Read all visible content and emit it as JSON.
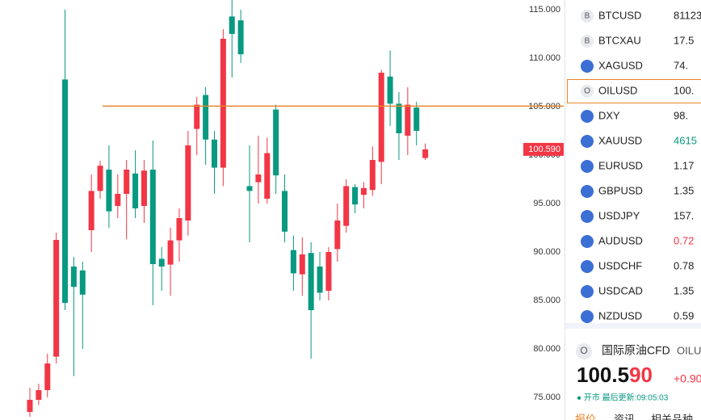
{
  "chart_data": {
    "type": "candlestick",
    "open": [
      73.5,
      74.75,
      75.75,
      79.2,
      107.8,
      88.5,
      88.1,
      92.25,
      96.3,
      98.5,
      94.75,
      96,
      98.1,
      94.75,
      98.5,
      89.3,
      88.7,
      91.2,
      93.25,
      102.7,
      106.2,
      101.6,
      98.7,
      114.3,
      113.9,
      96.8,
      97.2,
      95.5,
      104.7,
      96.3,
      90.2,
      87.7,
      89.9,
      88.5,
      86,
      90.3,
      92.7,
      96.7,
      95.9,
      96.4,
      99.3,
      108.1,
      105.3,
      102,
      104.9,
      99.7
    ],
    "high": [
      76,
      76.4,
      79.5,
      92,
      115,
      89.5,
      89,
      98,
      99.4,
      101,
      98,
      99.5,
      100.5,
      99.5,
      101.5,
      90.5,
      92.5,
      94.5,
      102.5,
      106,
      107,
      102.5,
      113,
      116,
      115,
      101,
      102,
      101.8,
      105.2,
      98,
      91.7,
      91.5,
      91,
      90,
      90.5,
      95,
      97.5,
      97,
      97.2,
      100.9,
      108.8,
      110.8,
      106.5,
      107,
      105.5,
      101.2
    ],
    "low": [
      73,
      74.2,
      75,
      78.5,
      84,
      77.2,
      80,
      90,
      95.5,
      92.5,
      93.5,
      91.3,
      93.5,
      93,
      84.5,
      86,
      85.5,
      89,
      91.7,
      100,
      99,
      96,
      96.8,
      108,
      109.5,
      91,
      95,
      95,
      96,
      91,
      86,
      85.5,
      79,
      85,
      85,
      89,
      92,
      94,
      94.5,
      95.8,
      97,
      103,
      99.5,
      100,
      101,
      99.5
    ],
    "close": [
      74.75,
      75.75,
      78.5,
      91.25,
      84.75,
      86.4,
      85.6,
      96.3,
      98.9,
      94.2,
      96,
      98.5,
      94.5,
      98.4,
      88.75,
      88.5,
      91.2,
      93.5,
      101,
      105.2,
      101.6,
      98.7,
      112,
      112.5,
      110.4,
      96.3,
      98,
      100.2,
      97.9,
      92.1,
      87.8,
      89.75,
      84,
      85.8,
      90,
      93.25,
      96.8,
      94.9,
      96.6,
      99.5,
      108.5,
      105.3,
      102.25,
      105.2,
      102.5,
      100.59
    ],
    "up_color": "#f23645",
    "down_color": "#089981",
    "ylim": [
      72.667,
      116
    ],
    "yticks": [
      {
        "value": 75,
        "label": "75.000"
      },
      {
        "value": 80,
        "label": "80.000"
      },
      {
        "value": 85,
        "label": "85.000"
      },
      {
        "value": 90,
        "label": "90.000"
      },
      {
        "value": 95,
        "label": "95.000"
      },
      {
        "value": 100,
        "label": "100.000"
      },
      {
        "value": 105,
        "label": "105.000"
      },
      {
        "value": 110,
        "label": "110.000"
      },
      {
        "value": 115,
        "label": "115.000"
      }
    ],
    "hline": 105.05,
    "hline_color": "#e8862a",
    "last_price": {
      "value": 100.59,
      "label": "100.590"
    }
  },
  "watchlist": [
    {
      "icon": "B",
      "symbol": "BTCUSD",
      "value": "81123",
      "color": "#222"
    },
    {
      "icon": "B",
      "symbol": "BTCXAU",
      "value": "17.5",
      "color": "#222"
    },
    {
      "symbol": "XAGUSD",
      "value": "74.",
      "color": "#222"
    },
    {
      "icon": "O",
      "symbol": "OILUSD",
      "value": "100.",
      "color": "#222"
    },
    {
      "symbol": "DXY",
      "value": "98.",
      "color": "#222"
    },
    {
      "symbol": "XAUUSD",
      "value": "4615",
      "color": "#089981"
    },
    {
      "symbol": "EURUSD",
      "value": "1.17",
      "color": "#222"
    },
    {
      "symbol": "GBPUSD",
      "value": "1.35",
      "color": "#222"
    },
    {
      "symbol": "USDJPY",
      "value": "157.",
      "color": "#222"
    },
    {
      "symbol": "AUDUSD",
      "value": "0.72",
      "color": "#f23645"
    },
    {
      "symbol": "USDCHF",
      "value": "0.78",
      "color": "#222"
    },
    {
      "symbol": "USDCAD",
      "value": "1.35",
      "color": "#222"
    },
    {
      "symbol": "NZDUSD",
      "value": "0.59",
      "color": "#222"
    }
  ],
  "quote": {
    "icon": "O",
    "name": "国际原油CFD",
    "code": "OILU",
    "price_main": "100.5",
    "price_tail": "90",
    "change": "+0.90",
    "status": "● 开市  最后更新:09:05:03",
    "tabs": [
      "报价",
      "资讯",
      "相关品种"
    ]
  }
}
